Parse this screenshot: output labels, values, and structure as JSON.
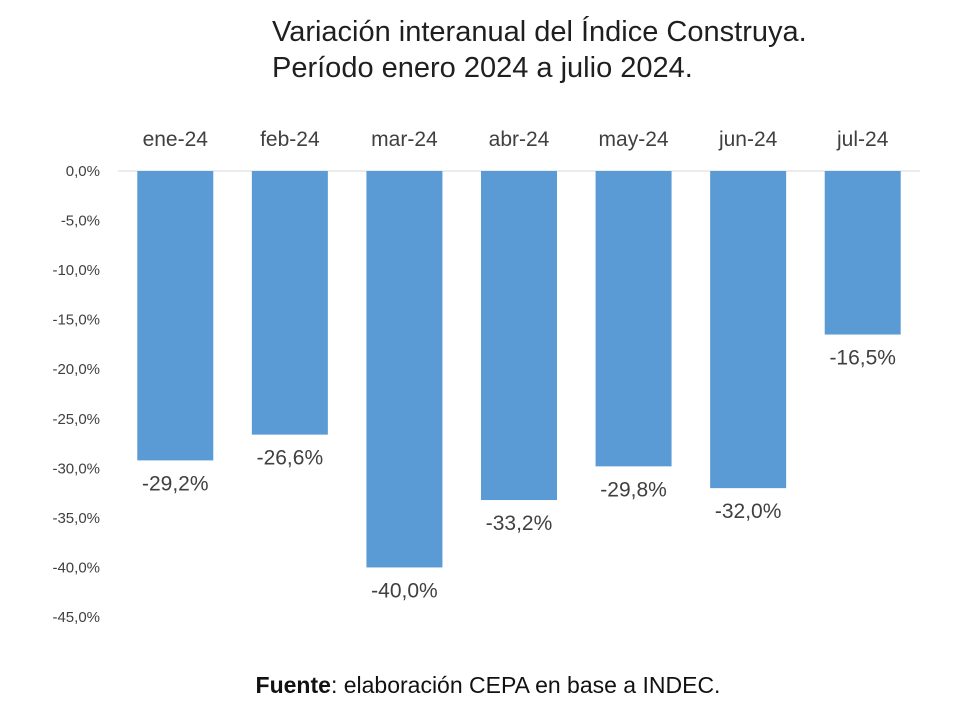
{
  "title_line1": "Variación interanual del Índice Construya.",
  "title_line2": "Período enero 2024 a julio 2024.",
  "source_label": "Fuente",
  "source_text": ": elaboración CEPA en base a INDEC.",
  "colors": {
    "bar": "#5b9bd5",
    "axis": "#d9d9d9",
    "text": "#404040"
  },
  "chart_data": {
    "type": "bar",
    "title": "Variación interanual del Índice Construya. Período enero 2024 a julio 2024.",
    "categories": [
      "ene-24",
      "feb-24",
      "mar-24",
      "abr-24",
      "may-24",
      "jun-24",
      "jul-24"
    ],
    "values": [
      -29.2,
      -26.6,
      -40.0,
      -33.2,
      -29.8,
      -32.0,
      -16.5
    ],
    "data_labels": [
      "-29,2%",
      "-26,6%",
      "-40,0%",
      "-33,2%",
      "-29,8%",
      "-32,0%",
      "-16,5%"
    ],
    "yticks": [
      "0,0%",
      "-5,0%",
      "-10,0%",
      "-15,0%",
      "-20,0%",
      "-25,0%",
      "-30,0%",
      "-35,0%",
      "-40,0%",
      "-45,0%"
    ],
    "ytick_values": [
      0,
      -5,
      -10,
      -15,
      -20,
      -25,
      -30,
      -35,
      -40,
      -45
    ],
    "ylim": [
      -45,
      0
    ],
    "xaxis_position": "top",
    "grid": false,
    "legend": "none"
  }
}
